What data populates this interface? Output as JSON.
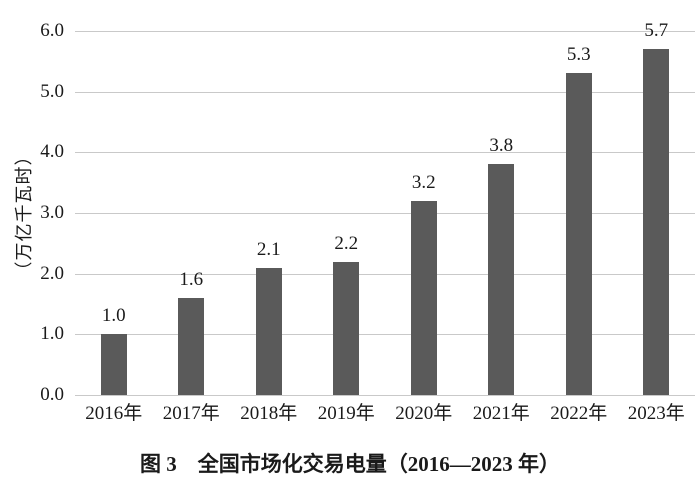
{
  "chart_data": {
    "type": "bar",
    "title": "图 3　全国市场化交易电量（2016—2023 年）",
    "categories": [
      "2016年",
      "2017年",
      "2018年",
      "2019年",
      "2020年",
      "2021年",
      "2022年",
      "2023年"
    ],
    "values": [
      1.0,
      1.6,
      2.1,
      2.2,
      3.2,
      3.8,
      5.3,
      5.7
    ],
    "value_labels": [
      "1.0",
      "1.6",
      "2.1",
      "2.2",
      "3.2",
      "3.8",
      "5.3",
      "5.7"
    ],
    "xlabel": "",
    "ylabel": "（万亿千瓦时）",
    "ylim": [
      0,
      6
    ],
    "yticks": [
      "0.0",
      "1.0",
      "2.0",
      "3.0",
      "4.0",
      "5.0",
      "6.0"
    ],
    "grid": "horizontal",
    "legend": "none",
    "bar_color": "#5a5a5a",
    "gridline_color": "#c9c9c9",
    "text_color": "#1a1a1a"
  }
}
